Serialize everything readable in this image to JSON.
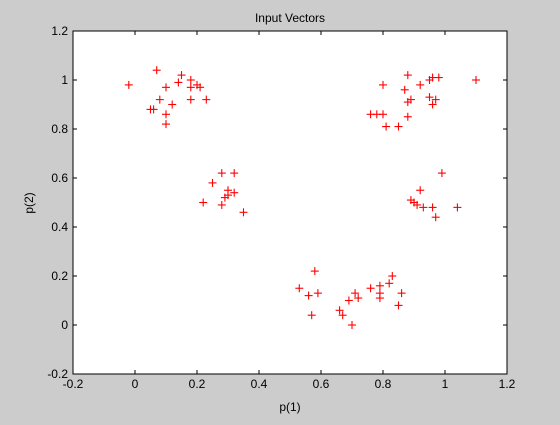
{
  "chart_data": {
    "type": "scatter",
    "title": "Input Vectors",
    "xlabel": "p(1)",
    "ylabel": "p(2)",
    "xlim": [
      -0.2,
      1.2
    ],
    "ylim": [
      -0.2,
      1.2
    ],
    "xticks": [
      -0.2,
      0,
      0.2,
      0.4,
      0.6,
      0.8,
      1,
      1.2
    ],
    "yticks": [
      -0.2,
      0,
      0.2,
      0.4,
      0.6,
      0.8,
      1,
      1.2
    ],
    "xtick_labels": [
      "-0.2",
      "0",
      "0.2",
      "0.4",
      "0.6",
      "0.8",
      "1",
      "1.2"
    ],
    "ytick_labels": [
      "-0.2",
      "0",
      "0.2",
      "0.4",
      "0.6",
      "0.8",
      "1",
      "1.2"
    ],
    "grid": false,
    "marker": "+",
    "marker_color": "#ff0000",
    "background_color": "#cccccc",
    "plot_background_color": "#ffffff",
    "points": [
      [
        -0.02,
        0.98
      ],
      [
        0.07,
        1.04
      ],
      [
        0.15,
        1.02
      ],
      [
        0.18,
        1.0
      ],
      [
        0.2,
        0.98
      ],
      [
        0.14,
        0.99
      ],
      [
        0.18,
        0.97
      ],
      [
        0.21,
        0.97
      ],
      [
        0.1,
        0.97
      ],
      [
        0.06,
        0.88
      ],
      [
        0.08,
        0.92
      ],
      [
        0.12,
        0.9
      ],
      [
        0.1,
        0.86
      ],
      [
        0.05,
        0.88
      ],
      [
        0.18,
        0.92
      ],
      [
        0.23,
        0.92
      ],
      [
        0.1,
        0.82
      ],
      [
        0.8,
        0.98
      ],
      [
        0.88,
        1.02
      ],
      [
        0.92,
        0.98
      ],
      [
        0.95,
        1.0
      ],
      [
        0.96,
        1.01
      ],
      [
        0.98,
        1.01
      ],
      [
        1.1,
        1.0
      ],
      [
        0.87,
        0.96
      ],
      [
        0.95,
        0.93
      ],
      [
        0.97,
        0.92
      ],
      [
        0.89,
        0.92
      ],
      [
        0.88,
        0.91
      ],
      [
        0.96,
        0.9
      ],
      [
        0.76,
        0.86
      ],
      [
        0.78,
        0.86
      ],
      [
        0.8,
        0.86
      ],
      [
        0.88,
        0.85
      ],
      [
        0.81,
        0.81
      ],
      [
        0.85,
        0.81
      ],
      [
        0.25,
        0.58
      ],
      [
        0.28,
        0.62
      ],
      [
        0.32,
        0.62
      ],
      [
        0.3,
        0.55
      ],
      [
        0.32,
        0.54
      ],
      [
        0.3,
        0.53
      ],
      [
        0.29,
        0.52
      ],
      [
        0.22,
        0.5
      ],
      [
        0.28,
        0.49
      ],
      [
        0.35,
        0.46
      ],
      [
        0.99,
        0.62
      ],
      [
        0.92,
        0.55
      ],
      [
        0.89,
        0.51
      ],
      [
        0.9,
        0.5
      ],
      [
        0.91,
        0.49
      ],
      [
        0.93,
        0.48
      ],
      [
        0.96,
        0.48
      ],
      [
        1.04,
        0.48
      ],
      [
        0.97,
        0.44
      ],
      [
        0.58,
        0.22
      ],
      [
        0.53,
        0.15
      ],
      [
        0.56,
        0.12
      ],
      [
        0.59,
        0.13
      ],
      [
        0.57,
        0.04
      ],
      [
        0.66,
        0.06
      ],
      [
        0.67,
        0.04
      ],
      [
        0.69,
        0.1
      ],
      [
        0.71,
        0.13
      ],
      [
        0.72,
        0.11
      ],
      [
        0.7,
        0.0
      ],
      [
        0.83,
        0.2
      ],
      [
        0.82,
        0.17
      ],
      [
        0.79,
        0.16
      ],
      [
        0.76,
        0.15
      ],
      [
        0.79,
        0.13
      ],
      [
        0.79,
        0.11
      ],
      [
        0.86,
        0.13
      ],
      [
        0.85,
        0.08
      ]
    ]
  }
}
